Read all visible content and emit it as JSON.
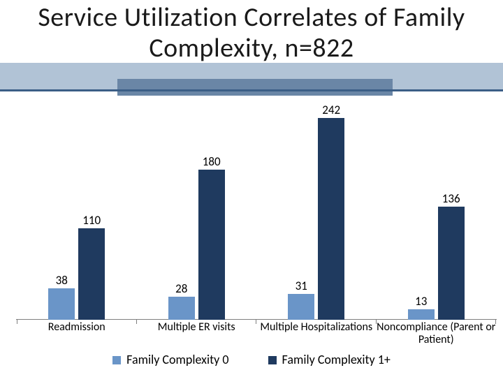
{
  "title": "Service Utilization Correlates of Family Complexity, n=822",
  "chart": {
    "type": "bar",
    "ylim": [
      0,
      260
    ],
    "categories": [
      {
        "label": "Readmission",
        "v0": 38,
        "v1": 110
      },
      {
        "label": "Multiple ER visits",
        "v0": 28,
        "v1": 180
      },
      {
        "label": "Multiple Hospitalizations",
        "v0": 31,
        "v1": 242
      },
      {
        "label": "Noncompliance (Parent or Patient)",
        "v0": 13,
        "v1": 136
      }
    ],
    "series": [
      {
        "label": "Family Complexity 0",
        "color": "#6a95c8"
      },
      {
        "label": "Family Complexity 1+",
        "color": "#1f3a5f"
      }
    ],
    "bar_width_pct": 22,
    "bar_gap_pct": 3,
    "label_fontsize_pt": 17,
    "cat_fontsize_pt": 16,
    "legend_fontsize_pt": 18,
    "title_fontsize_pt": 38,
    "title_color": "#1a1a1a",
    "axis_color": "#7f7f7f",
    "background": "#ffffff",
    "band_color": "#b1c3d6",
    "deco_block_color": "#6a86a6",
    "underline_color": "#3b5e86"
  }
}
